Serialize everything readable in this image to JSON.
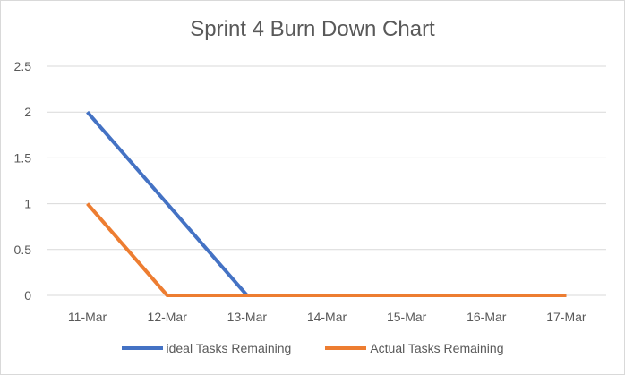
{
  "chart_data": {
    "type": "line",
    "title": "Sprint 4 Burn Down Chart",
    "xlabel": "",
    "ylabel": "",
    "categories": [
      "11-Mar",
      "12-Mar",
      "13-Mar",
      "14-Mar",
      "15-Mar",
      "16-Mar",
      "17-Mar"
    ],
    "ylim": [
      0,
      2.5
    ],
    "yticks": [
      "0",
      "0.5",
      "1",
      "1.5",
      "2",
      "2.5"
    ],
    "grid": true,
    "legend_position": "bottom",
    "series": [
      {
        "name": "ideal Tasks Remaining",
        "color": "#4472c4",
        "values": [
          2,
          1,
          0,
          0,
          0,
          0,
          0
        ]
      },
      {
        "name": "Actual Tasks Remaining",
        "color": "#ed7d31",
        "values": [
          1,
          0,
          0,
          0,
          0,
          0,
          0
        ]
      }
    ]
  }
}
